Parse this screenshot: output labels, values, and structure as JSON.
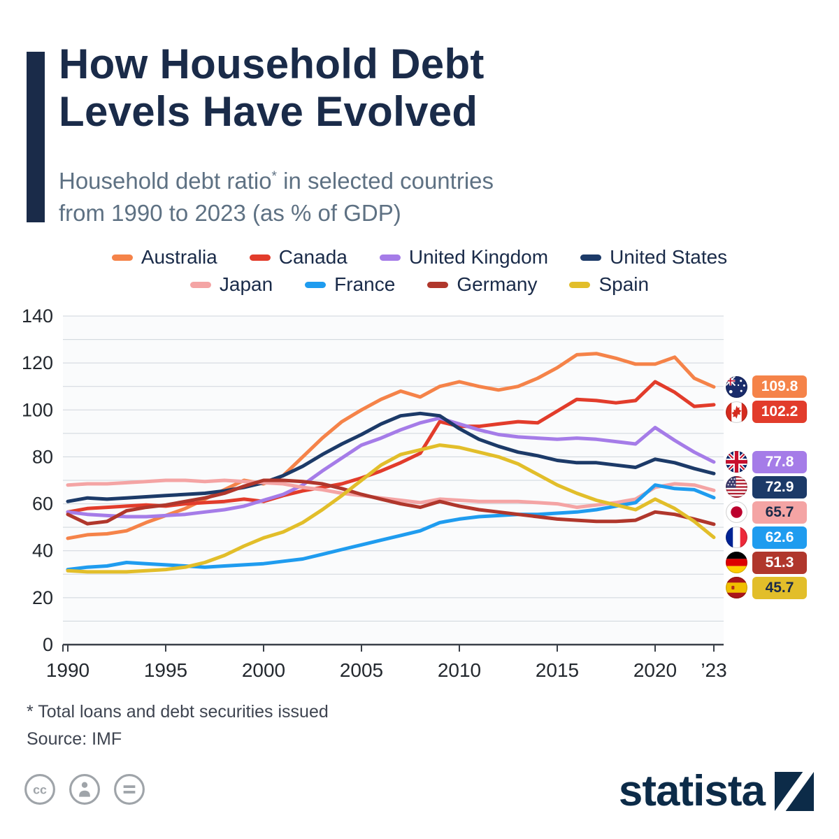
{
  "colors": {
    "navy": "#1A2B49",
    "subtitle": "#5E7183",
    "grid": "#CFD5DB",
    "axis": "#3A4048",
    "tick_text": "#23282E"
  },
  "header": {
    "title_line1": "How Household Debt",
    "title_line2": "Levels Have Evolved",
    "subtitle_line1_pre": "Household debt ratio",
    "subtitle_sup": "*",
    "subtitle_line1_post": " in selected countries",
    "subtitle_line2": "from 1990 to 2023 (as % of GDP)"
  },
  "footer": {
    "footnote": "* Total loans and debt securities issued",
    "source": "Source: IMF",
    "brand_wordmark": "statista"
  },
  "chart_data": {
    "type": "line",
    "title": "Household debt ratio in selected countries from 1990 to 2023 (as % of GDP)",
    "ylim": [
      0,
      140
    ],
    "ytick_step": 20,
    "grid_step": 10,
    "legend_position": "top",
    "x": [
      1990,
      1991,
      1992,
      1993,
      1994,
      1995,
      1996,
      1997,
      1998,
      1999,
      2000,
      2001,
      2002,
      2003,
      2004,
      2005,
      2006,
      2007,
      2008,
      2009,
      2010,
      2011,
      2012,
      2013,
      2014,
      2015,
      2016,
      2017,
      2018,
      2019,
      2020,
      2021,
      2022,
      2023
    ],
    "xticks": [
      {
        "year": 1990,
        "label": "1990"
      },
      {
        "year": 1995,
        "label": "1995"
      },
      {
        "year": 2000,
        "label": "2000"
      },
      {
        "year": 2005,
        "label": "2005"
      },
      {
        "year": 2010,
        "label": "2010"
      },
      {
        "year": 2015,
        "label": "2015"
      },
      {
        "year": 2020,
        "label": "2020"
      },
      {
        "year": 2023,
        "label": "’23"
      }
    ],
    "series": [
      {
        "name": "Australia",
        "flag": "au",
        "color": "#F58349",
        "end_label": "109.8",
        "label_text": "#FFFFFF",
        "values": [
          45.3,
          46.8,
          47.2,
          48.5,
          52,
          55,
          58,
          62,
          66,
          70,
          68.5,
          72,
          80,
          88,
          95,
          100,
          104.5,
          108,
          105.5,
          110,
          112,
          110,
          108.5,
          110,
          113.5,
          118,
          123.5,
          124,
          122,
          119.5,
          119.5,
          122.5,
          113.5,
          109.8
        ]
      },
      {
        "name": "Canada",
        "flag": "ca",
        "color": "#E23C2B",
        "end_label": "102.2",
        "label_text": "#FFFFFF",
        "values": [
          56.5,
          58,
          58.5,
          59,
          59.5,
          59,
          60,
          60.5,
          61,
          62,
          61,
          63.5,
          65.5,
          67,
          68.5,
          71,
          74,
          77.5,
          81.5,
          95,
          93,
          93,
          94,
          95,
          94.5,
          99.5,
          104.5,
          104,
          103,
          104,
          112,
          107.5,
          101.5,
          102.2
        ]
      },
      {
        "name": "United Kingdom",
        "flag": "gb",
        "color": "#A57CE8",
        "end_label": "77.8",
        "label_text": "#FFFFFF",
        "values": [
          56.5,
          55.5,
          55,
          54.5,
          54.5,
          55,
          55.5,
          56.5,
          57.5,
          59,
          61.5,
          64,
          68,
          74,
          79.5,
          85,
          88,
          91.5,
          94.5,
          96.5,
          94,
          91.5,
          89.5,
          88.5,
          88,
          87.5,
          88,
          87.5,
          86.5,
          85.5,
          92.5,
          87,
          82,
          77.8
        ]
      },
      {
        "name": "United States",
        "flag": "us",
        "color": "#1C3A68",
        "end_label": "72.9",
        "label_text": "#FFFFFF",
        "values": [
          61,
          62.5,
          62,
          62.5,
          63,
          63.5,
          64,
          64.5,
          65.5,
          67,
          69,
          72,
          76,
          81,
          85.5,
          89.5,
          94,
          97.5,
          98.5,
          97.5,
          92,
          87.5,
          84.5,
          82,
          80.5,
          78.5,
          77.5,
          77.5,
          76.5,
          75.5,
          79,
          77.5,
          75,
          72.9
        ]
      },
      {
        "name": "Japan",
        "flag": "jp",
        "color": "#F4A4A4",
        "end_label": "65.7",
        "label_text": "#1A2B49",
        "values": [
          68,
          68.5,
          68.5,
          69,
          69.5,
          70,
          70,
          69.5,
          70,
          69.5,
          69,
          68.5,
          67,
          66,
          64.5,
          63.5,
          62.5,
          61.5,
          60.5,
          62,
          61.5,
          61,
          61,
          61,
          60.5,
          60,
          58.5,
          59.5,
          60.5,
          62,
          67,
          68.5,
          68,
          65.7
        ]
      },
      {
        "name": "France",
        "flag": "fr",
        "color": "#1F9CEF",
        "end_label": "62.6",
        "label_text": "#FFFFFF",
        "values": [
          32,
          33,
          33.5,
          35,
          34.5,
          34,
          33.5,
          33,
          33.5,
          34,
          34.5,
          35.5,
          36.5,
          38.5,
          40.5,
          42.5,
          44.5,
          46.5,
          48.5,
          52,
          53.5,
          54.5,
          55,
          55.5,
          55.5,
          56,
          56.5,
          57.5,
          59,
          60.5,
          68,
          66.5,
          66,
          62.6
        ]
      },
      {
        "name": "Germany",
        "flag": "de",
        "color": "#B0372C",
        "end_label": "51.3",
        "label_text": "#FFFFFF",
        "values": [
          55.5,
          51.5,
          52.5,
          57,
          58.5,
          59.5,
          61,
          62.5,
          64.5,
          67.5,
          70,
          70,
          69.5,
          68.5,
          66.5,
          64,
          62,
          60,
          58.5,
          61,
          59,
          57.5,
          56.5,
          55.5,
          54.5,
          53.5,
          53,
          52.5,
          52.5,
          53,
          56.5,
          55.5,
          53.5,
          51.3
        ]
      },
      {
        "name": "Spain",
        "flag": "es",
        "color": "#E2BE2A",
        "end_label": "45.7",
        "label_text": "#1A2B49",
        "values": [
          31.5,
          31,
          31,
          31,
          31.5,
          32,
          33,
          35,
          38,
          42,
          45.5,
          48,
          52,
          57.5,
          63.5,
          70,
          76.5,
          81,
          83,
          85,
          84,
          82,
          80,
          77,
          72.5,
          68,
          64.5,
          61.5,
          59.5,
          57.5,
          62,
          58,
          52.5,
          45.7
        ]
      }
    ]
  }
}
